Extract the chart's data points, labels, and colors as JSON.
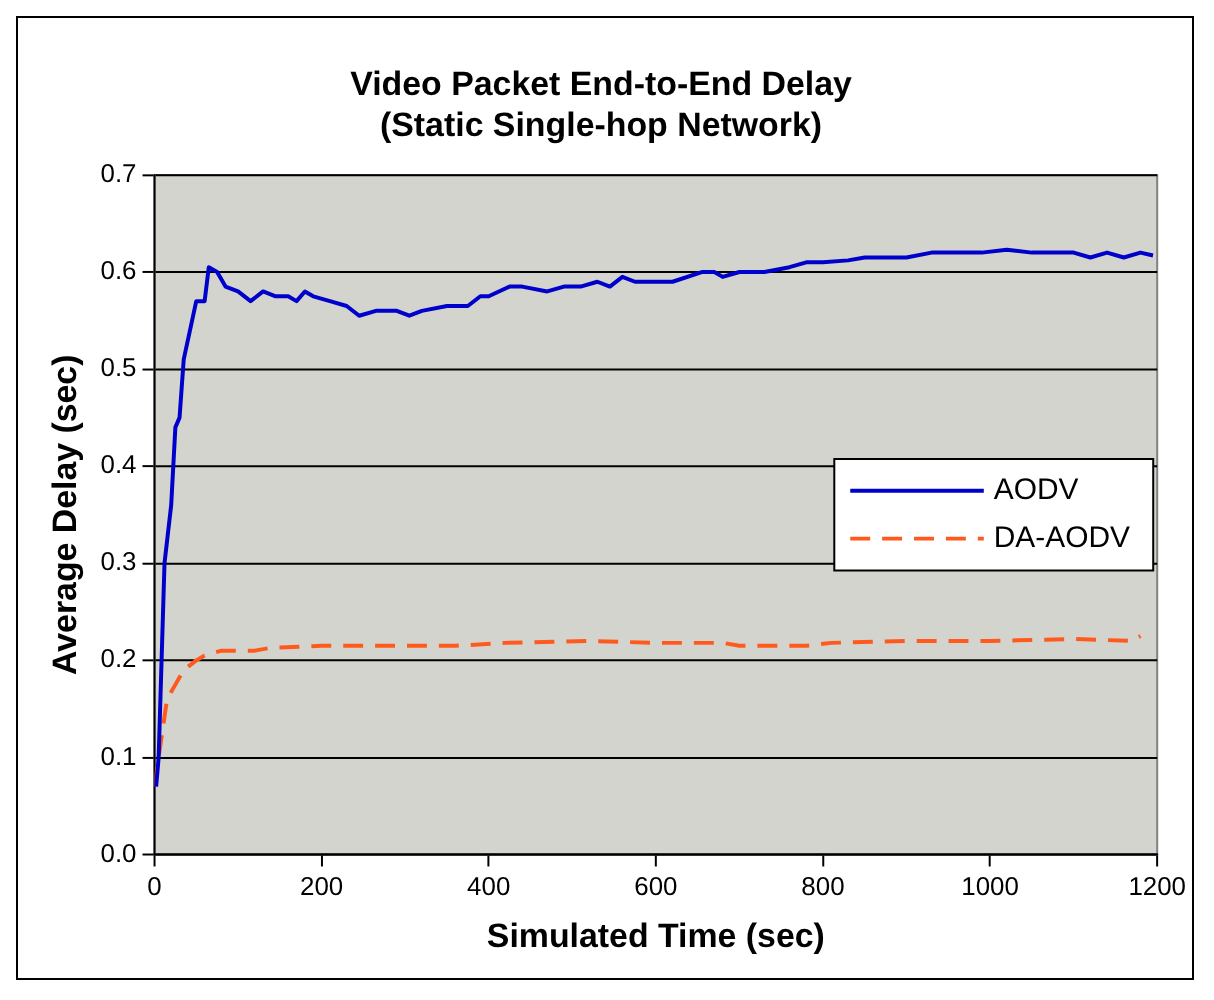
{
  "chart_data": {
    "type": "line",
    "title": "Video Packet End-to-End Delay\n(Static Single-hop Network)",
    "xlabel": "Simulated Time (sec)",
    "ylabel": "Average Delay (sec)",
    "xlim": [
      0,
      1200
    ],
    "xticks": [
      0,
      200,
      400,
      600,
      800,
      1000,
      1200
    ],
    "ylim": [
      0,
      0.7
    ],
    "yticks": [
      {
        "value": 0,
        "label": "0.0"
      },
      0.1,
      0.2,
      0.3,
      0.4,
      0.5,
      0.6,
      0.7
    ],
    "grid": "y",
    "legend": "right",
    "marker": "none",
    "series": [
      {
        "name": "AODV",
        "color": "#0000cc",
        "line_style": "solid",
        "x": [
          2,
          5,
          12,
          20,
          25,
          30,
          35,
          45,
          50,
          60,
          65,
          75,
          85,
          100,
          115,
          130,
          145,
          160,
          170,
          180,
          190,
          210,
          230,
          245,
          265,
          290,
          305,
          320,
          350,
          375,
          390,
          400,
          425,
          440,
          470,
          490,
          510,
          530,
          545,
          560,
          575,
          600,
          620,
          655,
          670,
          680,
          700,
          730,
          760,
          780,
          800,
          830,
          850,
          900,
          930,
          960,
          990,
          1020,
          1050,
          1100,
          1120,
          1140,
          1160,
          1180,
          1195
        ],
        "values": [
          0.07,
          0.1,
          0.3,
          0.36,
          0.44,
          0.45,
          0.51,
          0.55,
          0.57,
          0.57,
          0.605,
          0.6,
          0.585,
          0.58,
          0.57,
          0.58,
          0.575,
          0.575,
          0.57,
          0.58,
          0.575,
          0.57,
          0.565,
          0.555,
          0.56,
          0.56,
          0.555,
          0.56,
          0.565,
          0.565,
          0.575,
          0.575,
          0.585,
          0.585,
          0.58,
          0.585,
          0.585,
          0.59,
          0.585,
          0.595,
          0.59,
          0.59,
          0.59,
          0.6,
          0.6,
          0.595,
          0.6,
          0.6,
          0.605,
          0.61,
          0.61,
          0.612,
          0.615,
          0.615,
          0.62,
          0.62,
          0.62,
          0.623,
          0.62,
          0.62,
          0.615,
          0.62,
          0.615,
          0.62,
          0.617
        ]
      },
      {
        "name": "DA-AODV",
        "color": "#ff5a1e",
        "line_style": "dashed",
        "x": [
          0,
          10,
          15,
          25,
          35,
          50,
          60,
          80,
          120,
          140,
          200,
          300,
          360,
          420,
          520,
          600,
          680,
          700,
          780,
          810,
          900,
          1000,
          1100,
          1170,
          1180
        ],
        "values": [
          0.07,
          0.13,
          0.16,
          0.175,
          0.19,
          0.2,
          0.205,
          0.21,
          0.21,
          0.213,
          0.215,
          0.215,
          0.215,
          0.218,
          0.22,
          0.218,
          0.218,
          0.215,
          0.215,
          0.218,
          0.22,
          0.22,
          0.222,
          0.22,
          0.225
        ]
      }
    ]
  }
}
